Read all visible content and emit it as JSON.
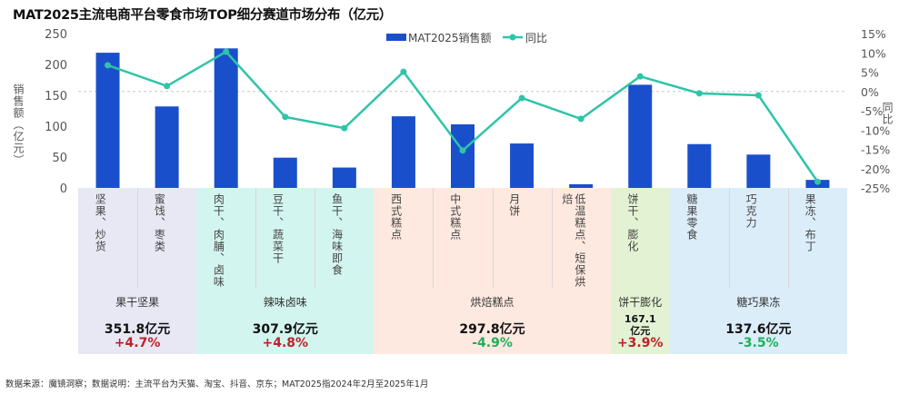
{
  "chart_data": {
    "type": "bar+line",
    "title": "MAT2025主流电商平台零食市场TOP细分赛道市场分布（亿元）",
    "ylabel": "销售额（亿元）",
    "y2label": "同比",
    "ylim": [
      0,
      250
    ],
    "yticks": [
      "0",
      "50",
      "100",
      "150",
      "200",
      "250"
    ],
    "y2lim": [
      -25,
      15
    ],
    "y2ticks": [
      "15%",
      "10%",
      "5%",
      "0%",
      "-5%",
      "-10%",
      "-15%",
      "-20%",
      "-25%"
    ],
    "legend_position": "top-right",
    "categories": [
      "坚果、炒货",
      "蜜饯、枣类",
      "肉干、肉脯、卤味",
      "豆干、蔬菜干",
      "鱼干、海味即食",
      "西式糕点",
      "中式糕点",
      "月饼",
      "低温糕点、短保烘焙",
      "饼干、膨化",
      "糖果零食",
      "巧克力",
      "果冻、布丁"
    ],
    "series": [
      {
        "name": "MAT2025销售额",
        "type": "bar",
        "color": "#1a4fcc",
        "values": [
          219,
          132,
          226,
          49,
          33,
          116,
          103,
          72,
          6,
          167.1,
          71,
          54,
          13
        ]
      },
      {
        "name": "同比",
        "type": "line",
        "color": "#2ec4a9",
        "unit": "%",
        "values": [
          6.8,
          1.4,
          10.3,
          -6.6,
          -9.5,
          5.1,
          -15.3,
          -1.7,
          -7.1,
          3.9,
          -0.5,
          -1.0,
          -23.4
        ]
      }
    ],
    "groups": [
      {
        "name": "果干坚果",
        "count": 2,
        "total": "351.8亿元",
        "yoy": "+4.7%",
        "color": "#e8e8f5"
      },
      {
        "name": "辣味卤味",
        "count": 3,
        "total": "307.9亿元",
        "yoy": "+4.8%",
        "color": "#d3f5ef"
      },
      {
        "name": "烘焙糕点",
        "count": 4,
        "total": "297.8亿元",
        "yoy": "-4.9%",
        "color": "#fde9e0"
      },
      {
        "name": "饼干膨化",
        "count": 1,
        "total": "167.1亿元",
        "yoy": "+3.9%",
        "color": "#e3f2d3"
      },
      {
        "name": "糖巧果冻",
        "count": 3,
        "total": "137.6亿元",
        "yoy": "-3.5%",
        "color": "#dcedfa"
      }
    ],
    "positive_color": "#c0202a",
    "negative_color": "#1fae5a"
  },
  "footer": "数据来源：魔镜洞察；数据说明：主流平台为天猫、淘宝、抖音、京东；MAT2025指2024年2月至2025年1月"
}
